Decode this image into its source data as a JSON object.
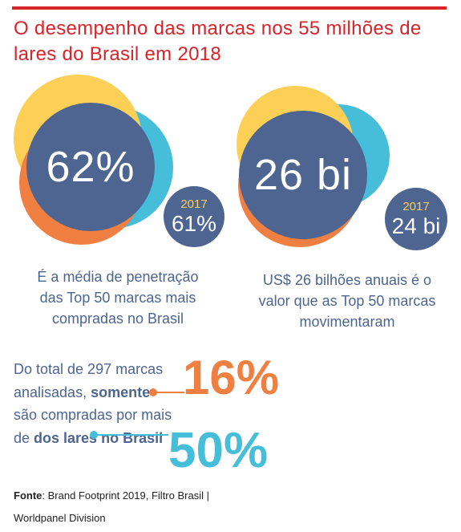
{
  "title": "O desempenho das marcas nos 55 milhões de lares do Brasil em 2018",
  "penetration": {
    "value": "62%",
    "prev_year": "2017",
    "prev_value": "61%",
    "caption": "É a média de penetração das Top 50 marcas mais compradas no Brasil"
  },
  "revenue": {
    "value": "26 bi",
    "prev_year": "2017",
    "prev_value": "24 bi",
    "caption": "US$  26 bilhões anuais é o valor que as Top 50 marcas movimentaram"
  },
  "brands": {
    "text_1": "Do total de 297 marcas analisadas, ",
    "text_bold_1": "somente",
    "text_2": " são compradas por mais de ",
    "text_bold_2": "dos lares no Brasil",
    "pct_top": "16%",
    "pct_bottom": "50%"
  },
  "source": {
    "label": "Fonte",
    "text": ": Brand Footprint 2019, Filtro Brasil | Worldpanel Division"
  },
  "colors": {
    "red": "#d9232a",
    "navy": "#4d6590",
    "orange": "#ef8042",
    "cyan": "#46bdd9",
    "yellow": "#fccf57"
  }
}
